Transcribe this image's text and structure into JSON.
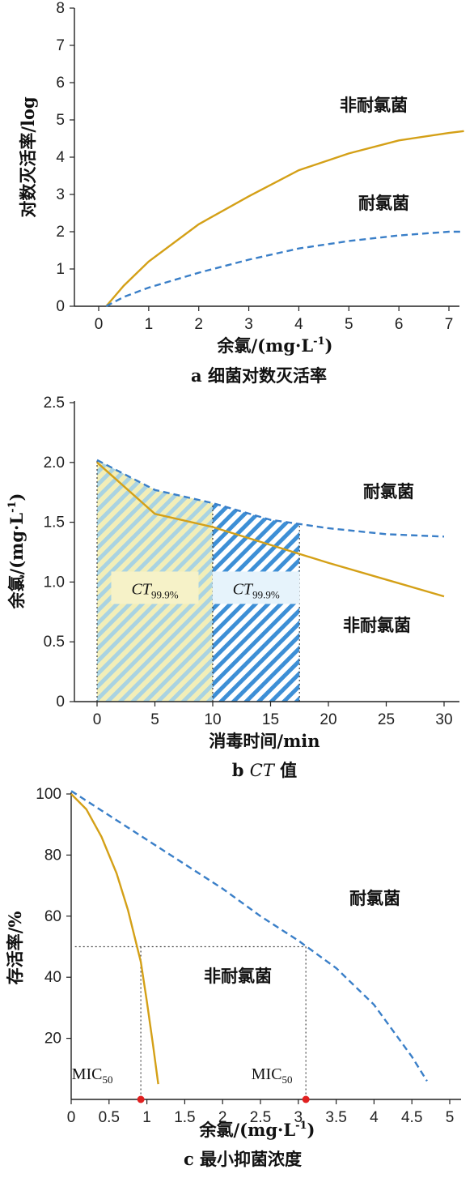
{
  "chart_data": [
    {
      "type": "line",
      "caption": "a 细菌对数灭活率",
      "xlabel": "余氯/(mg·L",
      "xlabel_sup": "-1",
      "xlabel_end": ")",
      "ylabel": "对数灭活率/log",
      "xlim": [
        -0.4,
        7.4
      ],
      "ylim": [
        0,
        8
      ],
      "xticks": [
        0,
        1,
        2,
        3,
        4,
        5,
        6,
        7
      ],
      "yticks": [
        0,
        1,
        2,
        3,
        4,
        5,
        6,
        7,
        8
      ],
      "series": [
        {
          "name": "非耐氯菌",
          "color": "#d4a017",
          "style": "solid",
          "x": [
            0.15,
            0.5,
            1,
            2,
            3,
            4,
            5,
            6,
            7,
            7.3
          ],
          "y": [
            0,
            0.55,
            1.2,
            2.2,
            2.95,
            3.65,
            4.1,
            4.45,
            4.65,
            4.7
          ]
        },
        {
          "name": "耐氯菌",
          "color": "#3a7fc8",
          "style": "dashed",
          "x": [
            0.15,
            0.5,
            1,
            2,
            3,
            4,
            5,
            6,
            7,
            7.3
          ],
          "y": [
            0,
            0.25,
            0.5,
            0.9,
            1.25,
            1.55,
            1.75,
            1.9,
            2.0,
            2.0
          ]
        }
      ]
    },
    {
      "type": "line",
      "caption_prefix": "b ",
      "caption_ital": "CT",
      "caption_suffix": " 值",
      "xlabel": "消毒时间/min",
      "ylabel": "余氯/(mg·L",
      "ylabel_sup": "-1",
      "ylabel_end": ")",
      "xlim": [
        -3,
        32
      ],
      "ylim": [
        0,
        2.5
      ],
      "xticks": [
        0,
        5,
        10,
        15,
        20,
        25,
        30
      ],
      "yticks": [
        0,
        0.5,
        1.0,
        1.5,
        2.0,
        2.5
      ],
      "ytick_labels": [
        "0",
        "0.5",
        "1.0",
        "1.5",
        "2.0",
        "2.5"
      ],
      "series": [
        {
          "name": "耐氯菌",
          "color": "#3a7fc8",
          "style": "dashed",
          "x": [
            0,
            5,
            10,
            15,
            20,
            25,
            30
          ],
          "y": [
            2.02,
            1.77,
            1.66,
            1.52,
            1.45,
            1.4,
            1.38
          ]
        },
        {
          "name": "非耐氯菌",
          "color": "#d4a017",
          "style": "solid",
          "x": [
            0,
            5,
            10,
            15,
            20,
            25,
            30
          ],
          "y": [
            2.0,
            1.57,
            1.46,
            1.31,
            1.16,
            1.02,
            0.88
          ]
        }
      ],
      "annotations": [
        {
          "label_base": "CT",
          "label_sub": "99.9%",
          "x_range": [
            0,
            10
          ],
          "color": "#d4a017"
        },
        {
          "label_base": "CT",
          "label_sub": "99.9%",
          "x_range": [
            10,
            17.5
          ],
          "color": "#3a7fc8"
        }
      ]
    },
    {
      "type": "line",
      "caption": "c 最小抑菌浓度",
      "xlabel": "余氯/(mg·L",
      "xlabel_sup": "-1",
      "xlabel_end": ")",
      "ylabel": "存活率/%",
      "xlim": [
        0,
        5.2
      ],
      "ylim": [
        0,
        100
      ],
      "xticks": [
        0,
        0.5,
        1,
        1.5,
        2,
        2.5,
        3,
        3.5,
        4,
        4.5,
        5
      ],
      "xtick_labels": [
        "0",
        "0.5",
        "1",
        "1.5",
        "2",
        "2.5",
        "3",
        "3.5",
        "4",
        "4.5",
        "5"
      ],
      "yticks": [
        20,
        40,
        60,
        80,
        100
      ],
      "series": [
        {
          "name": "非耐氯菌",
          "color": "#d4a017",
          "style": "solid",
          "x": [
            0,
            0.2,
            0.4,
            0.6,
            0.75,
            0.85,
            0.92,
            1.0,
            1.08,
            1.15
          ],
          "y": [
            100,
            95,
            86,
            74,
            62,
            52,
            45,
            32,
            18,
            5
          ]
        },
        {
          "name": "耐氯菌",
          "color": "#3a7fc8",
          "style": "dashed",
          "x": [
            0,
            0.5,
            1,
            1.5,
            2,
            2.5,
            3,
            3.5,
            4,
            4.5,
            4.7
          ],
          "y": [
            101,
            93,
            85,
            77,
            69,
            60,
            52,
            43,
            31,
            14,
            6
          ]
        }
      ],
      "mic": [
        {
          "label_base": "MIC",
          "label_sub": "50",
          "x": 0.92
        },
        {
          "label_base": "MIC",
          "label_sub": "50",
          "x": 3.1
        }
      ],
      "mic_level": 50,
      "marker_color": "#e02020"
    }
  ]
}
